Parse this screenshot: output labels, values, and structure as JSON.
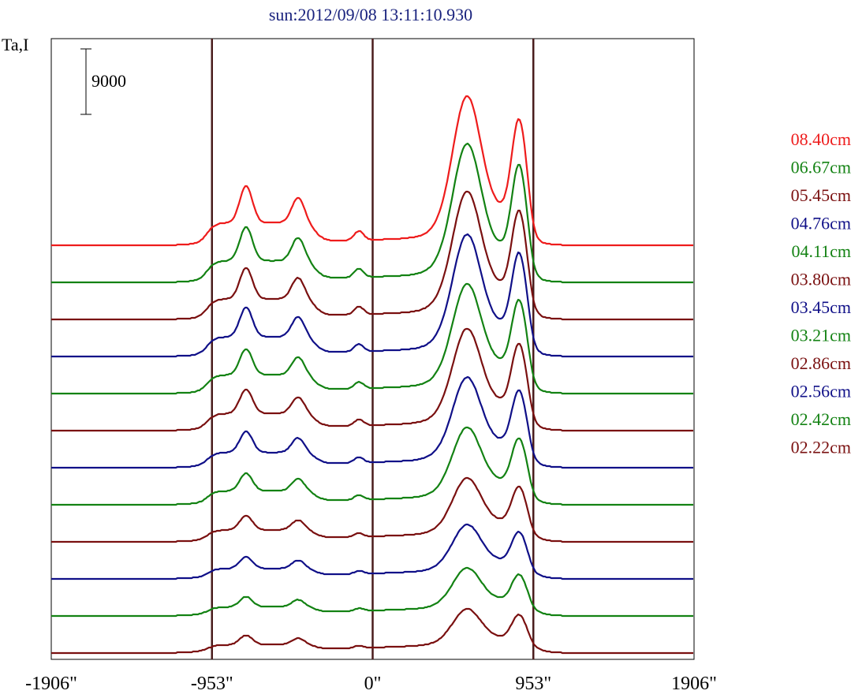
{
  "chart_data": {
    "type": "line",
    "title": "sun:2012/09/08 13:11:10.930",
    "title_color": "#1a237e",
    "ylabel": "Ta,I",
    "scale_bar_label": "9000",
    "x_tick_labels": [
      "-1906\"",
      "-953\"",
      "0\"",
      "953\"",
      "1906\""
    ],
    "x_ticks": [
      -1906,
      -953,
      0,
      953,
      1906
    ],
    "xlim": [
      -1906,
      1906
    ],
    "vertical_lines": [
      -953,
      0,
      953
    ],
    "vertical_line_color": "#4a1c1c",
    "grid": false,
    "legend_placement": "right",
    "series_offset_step": 47,
    "series": [
      {
        "name": "08.40cm",
        "color": "#ee1c1c",
        "amp": 1.25,
        "fw": 1.0
      },
      {
        "name": "06.67cm",
        "color": "#138213",
        "amp": 1.15,
        "fw": 0.95
      },
      {
        "name": "05.45cm",
        "color": "#7a1010",
        "amp": 1.05,
        "fw": 0.9
      },
      {
        "name": "04.76cm",
        "color": "#101088",
        "amp": 1.0,
        "fw": 0.85
      },
      {
        "name": "04.11cm",
        "color": "#138213",
        "amp": 0.88,
        "fw": 0.8
      },
      {
        "name": "03.80cm",
        "color": "#7a1010",
        "amp": 0.82,
        "fw": 0.72
      },
      {
        "name": "03.45cm",
        "color": "#101088",
        "amp": 0.72,
        "fw": 0.62
      },
      {
        "name": "03.21cm",
        "color": "#138213",
        "amp": 0.6,
        "fw": 0.55
      },
      {
        "name": "02.86cm",
        "color": "#7a1010",
        "amp": 0.48,
        "fw": 0.45
      },
      {
        "name": "02.56cm",
        "color": "#101088",
        "amp": 0.4,
        "fw": 0.37
      },
      {
        "name": "02.42cm",
        "color": "#138213",
        "amp": 0.35,
        "fw": 0.3
      },
      {
        "name": "02.22cm",
        "color": "#7a1010",
        "amp": 0.32,
        "fw": 0.26
      }
    ]
  }
}
